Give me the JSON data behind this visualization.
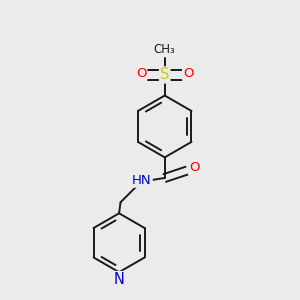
{
  "bg_color": "#ebebeb",
  "bond_color": "#1a1a1a",
  "bond_width": 1.4,
  "atom_colors": {
    "O": "#ff0000",
    "N": "#0000cc",
    "S": "#cccc00",
    "C": "#1a1a1a"
  },
  "font_size": 9.5,
  "xlim": [
    -1.8,
    1.8
  ],
  "ylim": [
    -2.0,
    2.0
  ]
}
